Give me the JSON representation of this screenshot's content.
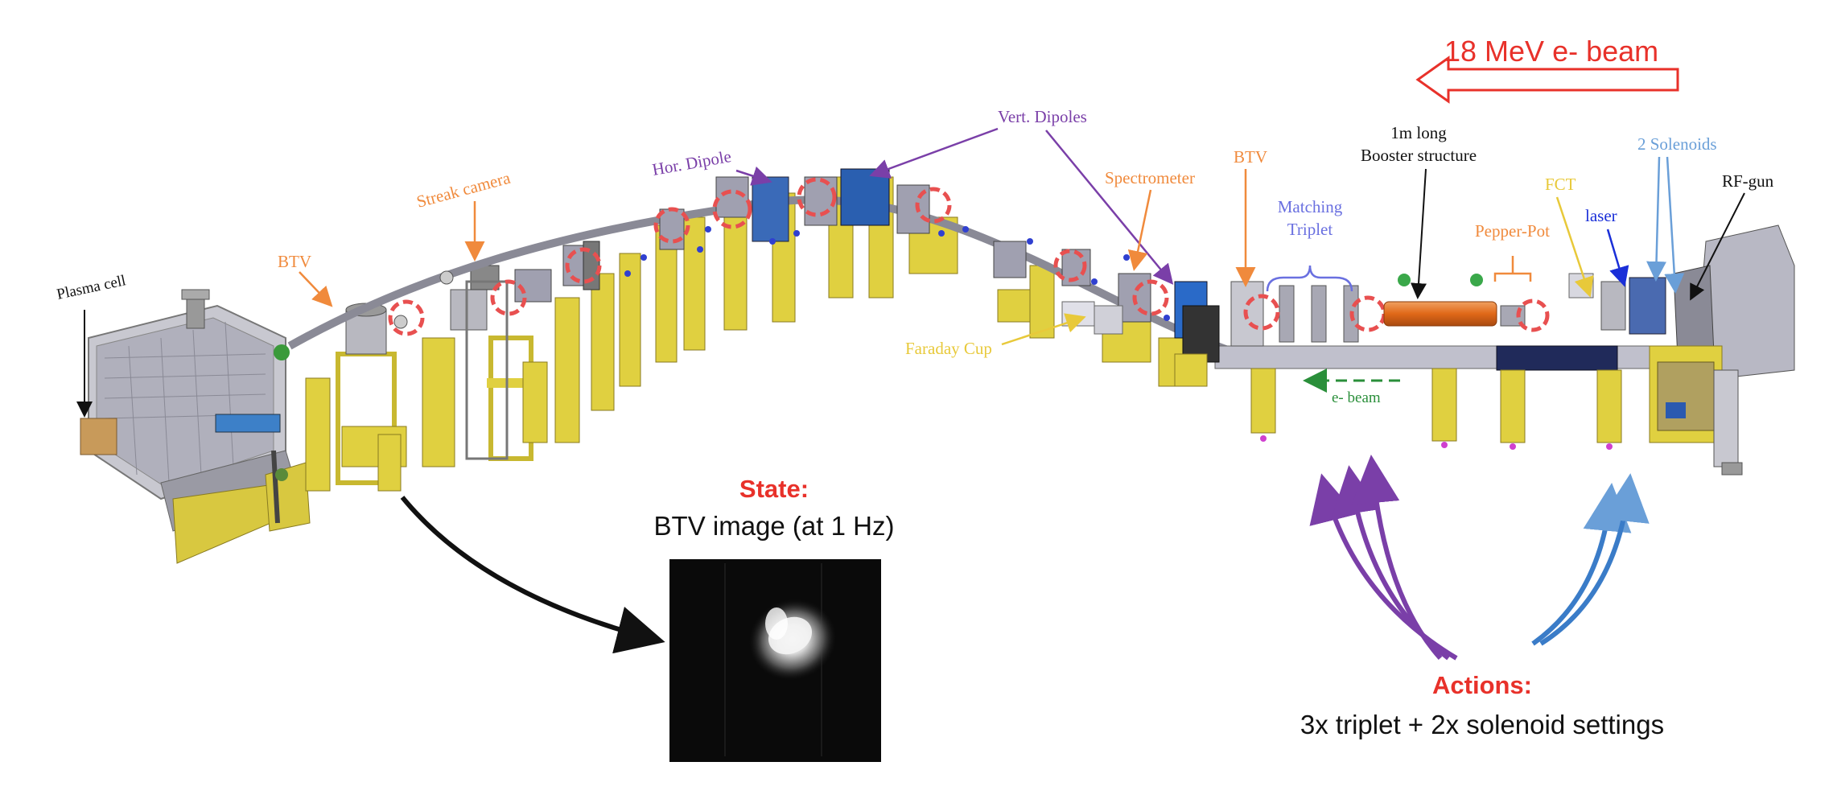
{
  "labels": {
    "beam_title": "18 MeV e- beam",
    "plasma_cell": "Plasma cell",
    "btv_left": "BTV",
    "streak_camera": "Streak camera",
    "hor_dipole": "Hor. Dipole",
    "vert_dipoles": "Vert. Dipoles",
    "spectrometer": "Spectrometer",
    "btv_right": "BTV",
    "matching_triplet_line1": "Matching",
    "matching_triplet_line2": "Triplet",
    "booster_line1": "1m long",
    "booster_line2": "Booster structure",
    "fct": "FCT",
    "pepper_pot": "Pepper-Pot",
    "laser": "laser",
    "solenoids": "2 Solenoids",
    "rf_gun": "RF-gun",
    "faraday_cup": "Faraday Cup",
    "e_beam": "e- beam"
  },
  "state": {
    "title": "State:",
    "subtitle": "BTV image (at 1 Hz)"
  },
  "actions": {
    "title": "Actions:",
    "subtitle": "3x triplet + 2x solenoid settings"
  },
  "colors": {
    "red": "#e8312a",
    "orange": "#f08a3c",
    "purple": "#7a3fa8",
    "blue": "#3a7cc8",
    "yellow": "#e8c93a",
    "green": "#2a8f3a",
    "dark": "#222222",
    "lightblue": "#6a9fd8",
    "triplet_purple": "#7070e0"
  }
}
